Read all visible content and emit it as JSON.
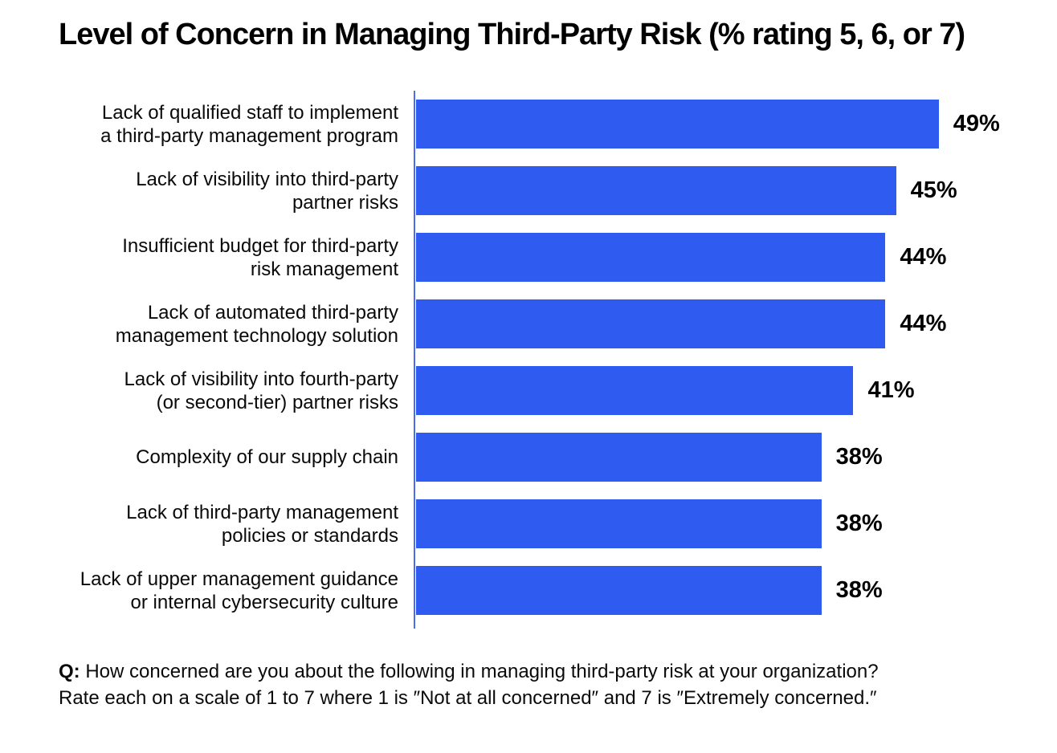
{
  "chart_data": {
    "type": "bar",
    "orientation": "horizontal",
    "title": "Level of Concern in Managing Third-Party Risk (% rating 5, 6, or 7)",
    "bar_color": "#2F5BF0",
    "axis_color": "#4C6CF0",
    "grid": false,
    "legend": "none",
    "xlim": [
      0,
      60
    ],
    "categories": [
      "Lack of qualified staff to implement a third-party management program",
      "Lack of visibility into third-party partner risks",
      "Insufficient budget for third-party risk management",
      "Lack of automated third-party management technology solution",
      "Lack of visibility into fourth-party (or second-tier) partner risks",
      "Complexity of our supply chain",
      "Lack of third-party management policies or standards",
      "Lack of upper management guidance or internal cybersecurity culture"
    ],
    "values": [
      49,
      45,
      44,
      44,
      41,
      38,
      38,
      38
    ],
    "rows": [
      {
        "label_lines": [
          "Lack of qualified staff to implement",
          "a third-party management program"
        ],
        "value": 49,
        "value_label": "49%"
      },
      {
        "label_lines": [
          "Lack of visibility into third-party",
          "partner risks"
        ],
        "value": 45,
        "value_label": "45%"
      },
      {
        "label_lines": [
          "Insufficient budget for third-party",
          "risk management"
        ],
        "value": 44,
        "value_label": "44%"
      },
      {
        "label_lines": [
          "Lack of automated third-party",
          "management technology solution"
        ],
        "value": 44,
        "value_label": "44%"
      },
      {
        "label_lines": [
          "Lack of visibility into fourth-party",
          "(or second-tier) partner risks"
        ],
        "value": 41,
        "value_label": "41%"
      },
      {
        "label_lines": [
          "Complexity of our supply chain"
        ],
        "value": 38,
        "value_label": "38%"
      },
      {
        "label_lines": [
          "Lack of third-party management",
          "policies or standards"
        ],
        "value": 38,
        "value_label": "38%"
      },
      {
        "label_lines": [
          "Lack of upper management guidance",
          "or internal cybersecurity culture"
        ],
        "value": 38,
        "value_label": "38%"
      }
    ]
  },
  "footnote": {
    "q_prefix": "Q:",
    "line1": " How concerned are you about the following in managing third-party risk at your organization?",
    "line2": "Rate each on a scale of 1 to 7 where 1 is ″Not at all concerned″ and 7 is ″Extremely concerned.″"
  }
}
